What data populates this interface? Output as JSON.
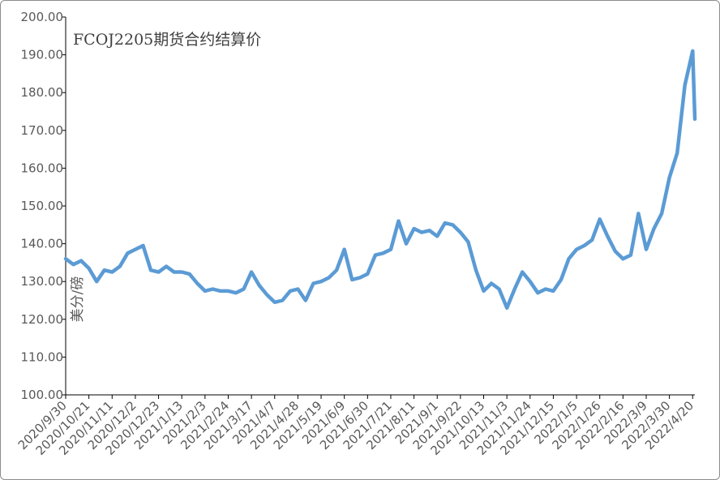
{
  "chart_data": {
    "type": "line",
    "title": "FCOJ2205期货合约结算价",
    "ylabel": "美分/磅",
    "xlabel": "",
    "ylim": [
      100,
      200
    ],
    "y_ticks": [
      "100.00",
      "110.00",
      "120.00",
      "130.00",
      "140.00",
      "150.00",
      "160.00",
      "170.00",
      "180.00",
      "190.00",
      "200.00"
    ],
    "x_ticks": [
      "2020/9/30",
      "2020/10/21",
      "2020/11/11",
      "2020/12/2",
      "2020/12/23",
      "2021/1/13",
      "2021/2/3",
      "2021/2/24",
      "2021/3/17",
      "2021/4/7",
      "2021/4/28",
      "2021/5/19",
      "2021/6/9",
      "2021/6/30",
      "2021/7/21",
      "2021/8/11",
      "2021/9/1",
      "2021/9/22",
      "2021/10/13",
      "2021/11/3",
      "2021/11/24",
      "2021/12/15",
      "2022/1/5",
      "2022/1/26",
      "2022/2/16",
      "2022/3/9",
      "2022/3/30",
      "2022/4/20"
    ],
    "grid": false,
    "legend": "none",
    "line_color": "#5b9bd5",
    "series": [
      {
        "x": [
          "2020/9/30",
          "2020/10/7",
          "2020/10/14",
          "2020/10/21",
          "2020/10/28",
          "2020/11/4",
          "2020/11/11",
          "2020/11/18",
          "2020/11/25",
          "2020/12/2",
          "2020/12/9",
          "2020/12/16",
          "2020/12/23",
          "2020/12/30",
          "2021/1/6",
          "2021/1/13",
          "2021/1/20",
          "2021/1/27",
          "2021/2/3",
          "2021/2/10",
          "2021/2/17",
          "2021/2/24",
          "2021/3/3",
          "2021/3/10",
          "2021/3/17",
          "2021/3/24",
          "2021/3/31",
          "2021/4/7",
          "2021/4/14",
          "2021/4/21",
          "2021/4/28",
          "2021/5/5",
          "2021/5/12",
          "2021/5/19",
          "2021/5/26",
          "2021/6/2",
          "2021/6/9",
          "2021/6/16",
          "2021/6/23",
          "2021/6/30",
          "2021/7/7",
          "2021/7/14",
          "2021/7/21",
          "2021/7/28",
          "2021/8/4",
          "2021/8/11",
          "2021/8/18",
          "2021/8/25",
          "2021/9/1",
          "2021/9/8",
          "2021/9/15",
          "2021/9/22",
          "2021/9/29",
          "2021/10/6",
          "2021/10/13",
          "2021/10/20",
          "2021/10/27",
          "2021/11/3",
          "2021/11/10",
          "2021/11/17",
          "2021/11/24",
          "2021/12/1",
          "2021/12/8",
          "2021/12/15",
          "2021/12/22",
          "2021/12/29",
          "2022/1/5",
          "2022/1/12",
          "2022/1/19",
          "2022/1/26",
          "2022/2/2",
          "2022/2/9",
          "2022/2/16",
          "2022/2/23",
          "2022/3/2",
          "2022/3/9",
          "2022/3/16",
          "2022/3/23",
          "2022/3/30",
          "2022/4/6",
          "2022/4/13",
          "2022/4/20",
          "2022/4/22"
        ],
        "values": [
          136.0,
          134.5,
          135.5,
          133.5,
          130.0,
          133.0,
          132.5,
          134.0,
          137.5,
          138.5,
          139.5,
          133.0,
          132.5,
          134.0,
          132.5,
          132.5,
          132.0,
          129.5,
          127.5,
          128.0,
          127.5,
          127.5,
          127.0,
          128.0,
          132.5,
          129.0,
          126.5,
          124.5,
          125.0,
          127.5,
          128.0,
          125.0,
          129.5,
          130.0,
          131.0,
          133.0,
          138.5,
          130.5,
          131.0,
          132.0,
          137.0,
          137.5,
          138.5,
          146.0,
          140.0,
          144.0,
          143.0,
          143.5,
          142.0,
          145.5,
          145.0,
          143.0,
          140.5,
          133.0,
          127.5,
          129.5,
          128.0,
          123.0,
          128.0,
          132.5,
          130.0,
          127.0,
          128.0,
          127.5,
          130.5,
          136.0,
          138.5,
          139.5,
          141.0,
          146.5,
          142.0,
          138.0,
          136.0,
          137.0,
          148.0,
          138.5,
          144.0,
          148.0,
          157.5,
          164.0,
          182.0,
          191.0,
          173.0
        ]
      }
    ]
  }
}
